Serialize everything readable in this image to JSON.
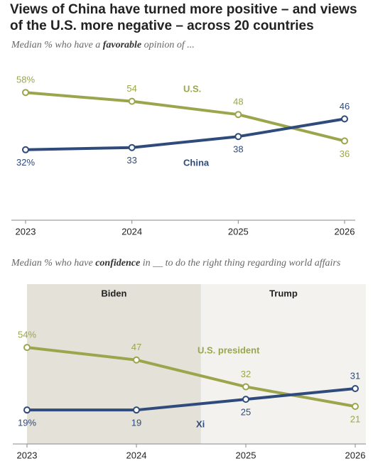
{
  "title": "Views of China have turned more positive – and views of the U.S. more negative – across 20 countries",
  "chart_data": [
    {
      "type": "line",
      "subtitle": [
        "Median % who have a ",
        "favorable",
        " opinion of ..."
      ],
      "x": [
        2023,
        2024,
        2025,
        2026
      ],
      "xticks": [
        2023,
        2024,
        2025,
        2026
      ],
      "xlim": [
        2023,
        2026
      ],
      "ylim": [
        0,
        60
      ],
      "series": [
        {
          "name": "U.S.",
          "color": "#9ba64c",
          "values": [
            58,
            54,
            48,
            36
          ],
          "value_labels": [
            "58%",
            "54",
            "48",
            "36"
          ]
        },
        {
          "name": "China",
          "color": "#2f4b7c",
          "values": [
            32,
            33,
            38,
            46
          ],
          "value_labels": [
            "32%",
            "33",
            "38",
            "46"
          ]
        }
      ]
    },
    {
      "type": "line",
      "subtitle": [
        "Median % who have ",
        "confidence",
        " in __ to do the right thing regarding world affairs"
      ],
      "periods": [
        {
          "label": "Biden"
        },
        {
          "label": "Trump"
        }
      ],
      "x": [
        2023,
        2024,
        2025,
        2026
      ],
      "xticks": [
        2023,
        2024,
        2025,
        2026
      ],
      "xlim": [
        2023,
        2026
      ],
      "ylim": [
        0,
        60
      ],
      "series": [
        {
          "name": "U.S. president",
          "color": "#9ba64c",
          "values": [
            54,
            47,
            32,
            21
          ],
          "value_labels": [
            "54%",
            "47",
            "32",
            "21"
          ]
        },
        {
          "name": "Xi",
          "color": "#2f4b7c",
          "values": [
            19,
            19,
            25,
            31
          ],
          "value_labels": [
            "19%",
            "19",
            "25",
            "31"
          ]
        }
      ]
    }
  ]
}
